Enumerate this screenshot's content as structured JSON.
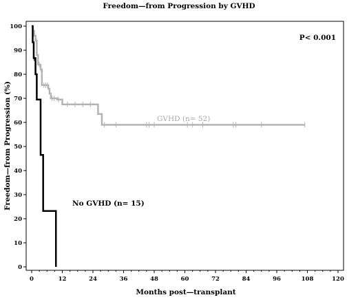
{
  "chart_data": {
    "type": "line",
    "title": "Freedom—from Progression by GVHD",
    "xlabel": "Months post—transplant",
    "ylabel": "Freedom—from Progression (%)",
    "xlim": [
      0,
      120
    ],
    "ylim": [
      0,
      100
    ],
    "x_ticks": [
      "0",
      "12",
      "24",
      "36",
      "48",
      "60",
      "72",
      "84",
      "96",
      "108",
      "120"
    ],
    "y_ticks": [
      "0",
      "10",
      "20",
      "30",
      "40",
      "50",
      "60",
      "70",
      "80",
      "90",
      "100"
    ],
    "grid": false,
    "p_value": "P< 0.001",
    "series": [
      {
        "name": "GVHD (n= 52)",
        "color": "#b4b4b4",
        "step_points": [
          [
            0,
            100
          ],
          [
            0.5,
            98
          ],
          [
            1,
            96
          ],
          [
            1.5,
            94
          ],
          [
            2,
            88
          ],
          [
            2.5,
            84
          ],
          [
            3.5,
            82
          ],
          [
            4,
            75.5
          ],
          [
            6.5,
            74
          ],
          [
            7,
            72
          ],
          [
            7.5,
            70
          ],
          [
            10,
            69.5
          ],
          [
            12,
            67.5
          ],
          [
            26,
            63.5
          ],
          [
            27.5,
            59
          ],
          [
            107,
            59
          ]
        ],
        "censor_x": [
          0.8,
          1.8,
          3,
          3.7,
          4.8,
          5.5,
          6.2,
          8,
          8.8,
          10.5,
          14,
          17,
          20,
          23,
          28.5,
          33,
          45,
          46,
          48,
          61,
          63,
          67,
          79,
          80,
          90,
          107
        ]
      },
      {
        "name": "No GVHD (n= 15)",
        "color": "#000000",
        "step_points": [
          [
            0,
            100
          ],
          [
            0.4,
            93.3
          ],
          [
            0.8,
            86.7
          ],
          [
            1.5,
            80
          ],
          [
            2,
            69.5
          ],
          [
            3.5,
            46.5
          ],
          [
            4.5,
            23.2
          ],
          [
            9.5,
            0
          ]
        ],
        "censor_x": [
          1
        ]
      }
    ],
    "annotations": {
      "gvhd_label": "GVHD (n= 52)",
      "no_gvhd_label": "No GVHD (n= 15)"
    }
  }
}
